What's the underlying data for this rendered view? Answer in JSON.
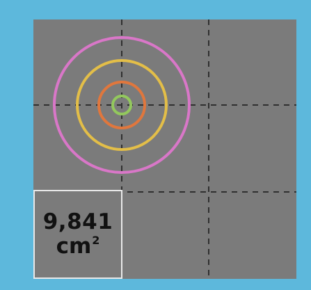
{
  "area_label": {
    "value": "9,841",
    "unit": "cm",
    "superscript": "2"
  },
  "colors": {
    "frame": "#5db8dc",
    "panel": "#7b7b7b",
    "grid_lines": "#2f2f2f",
    "box_border": "#e9e9e9",
    "ring_outer": "#d977c8",
    "ring_second": "#e3be48",
    "ring_third": "#e0773d",
    "ring_inner": "#93c85d"
  },
  "rings": [
    {
      "name": "outer-pink-ring",
      "color": "#d977c8"
    },
    {
      "name": "yellow-ring",
      "color": "#e3be48"
    },
    {
      "name": "orange-ring",
      "color": "#e0773d"
    },
    {
      "name": "inner-green-ring",
      "color": "#93c85d"
    }
  ]
}
